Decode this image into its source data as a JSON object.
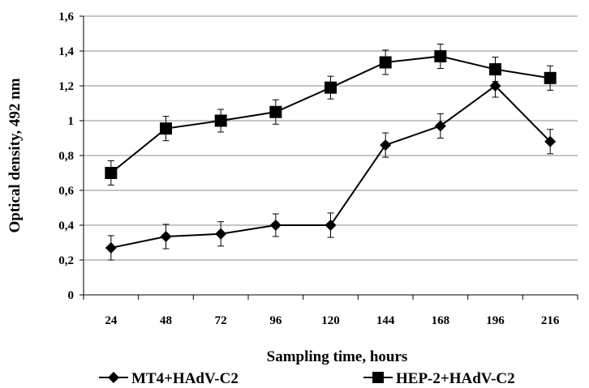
{
  "chart_data": {
    "type": "line",
    "title": "",
    "xlabel": "Sampling time, hours",
    "ylabel": "Optical density, 492 nm",
    "categories": [
      "24",
      "48",
      "72",
      "96",
      "120",
      "144",
      "168",
      "196",
      "216"
    ],
    "ylim": [
      0,
      1.6
    ],
    "yticks": [
      {
        "value": 0,
        "label": "0"
      },
      {
        "value": 0.2,
        "label": "0,2"
      },
      {
        "value": 0.4,
        "label": "0,4"
      },
      {
        "value": 0.6,
        "label": "0,6"
      },
      {
        "value": 0.8,
        "label": "0,8"
      },
      {
        "value": 1.0,
        "label": "1"
      },
      {
        "value": 1.2,
        "label": "1,2"
      },
      {
        "value": 1.4,
        "label": "1,4"
      },
      {
        "value": 1.6,
        "label": "1,6"
      }
    ],
    "grid": true,
    "legend": "bottom",
    "series": [
      {
        "name": "MT4+HAdV-C2",
        "marker": "diamond",
        "color": "#000000",
        "values": [
          0.27,
          0.335,
          0.35,
          0.4,
          0.4,
          0.86,
          0.97,
          1.2,
          0.88
        ],
        "errors": [
          0.07,
          0.07,
          0.07,
          0.065,
          0.07,
          0.07,
          0.07,
          0.065,
          0.07
        ]
      },
      {
        "name": "HEP-2+HAdV-C2",
        "marker": "square",
        "color": "#000000",
        "values": [
          0.7,
          0.955,
          1.0,
          1.05,
          1.19,
          1.335,
          1.37,
          1.295,
          1.245
        ],
        "errors": [
          0.07,
          0.07,
          0.065,
          0.07,
          0.065,
          0.07,
          0.07,
          0.07,
          0.07
        ]
      }
    ]
  }
}
